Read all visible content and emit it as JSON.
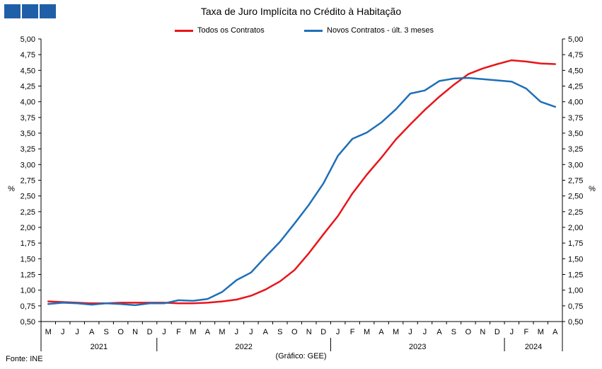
{
  "title": "Taxa de Juro Implícita  no Crédito à Habitação",
  "source": "Fonte: INE",
  "credit": "(Gráfico: GEE)",
  "chart_data": {
    "type": "line",
    "ylabel_left": "%",
    "ylabel_right": "%",
    "ylim": [
      0.5,
      5.0
    ],
    "ytick_step": 0.25,
    "ytick_labels": [
      "0,50",
      "0,75",
      "1,00",
      "1,25",
      "1,50",
      "1,75",
      "2,00",
      "2,25",
      "2,50",
      "2,75",
      "3,00",
      "3,25",
      "3,50",
      "3,75",
      "4,00",
      "4,25",
      "4,50",
      "4,75",
      "5,00"
    ],
    "months": [
      "M",
      "J",
      "J",
      "A",
      "S",
      "O",
      "N",
      "D",
      "J",
      "F",
      "M",
      "A",
      "M",
      "J",
      "J",
      "A",
      "S",
      "O",
      "N",
      "D",
      "J",
      "F",
      "M",
      "A",
      "M",
      "J",
      "J",
      "A",
      "S",
      "O",
      "N",
      "D",
      "J",
      "F",
      "M",
      "A"
    ],
    "years": [
      {
        "label": "2021",
        "start": 0,
        "end": 7
      },
      {
        "label": "2022",
        "start": 8,
        "end": 19
      },
      {
        "label": "2023",
        "start": 20,
        "end": 31
      },
      {
        "label": "2024",
        "start": 32,
        "end": 35
      }
    ],
    "grid": false,
    "legend_position": "top-center",
    "series": [
      {
        "name": "Todos os Contratos",
        "color": "#e8151b",
        "values": [
          0.82,
          0.81,
          0.8,
          0.79,
          0.79,
          0.8,
          0.8,
          0.8,
          0.8,
          0.79,
          0.79,
          0.8,
          0.82,
          0.85,
          0.91,
          1.01,
          1.14,
          1.32,
          1.59,
          1.89,
          2.18,
          2.54,
          2.84,
          3.11,
          3.4,
          3.64,
          3.87,
          4.08,
          4.27,
          4.44,
          4.53,
          4.6,
          4.66,
          4.64,
          4.61,
          4.6
        ]
      },
      {
        "name": "Novos Contratos - últ. 3 meses",
        "color": "#1f6fb8",
        "values": [
          0.78,
          0.8,
          0.79,
          0.77,
          0.79,
          0.78,
          0.76,
          0.79,
          0.79,
          0.84,
          0.83,
          0.86,
          0.97,
          1.16,
          1.28,
          1.53,
          1.77,
          2.06,
          2.36,
          2.7,
          3.14,
          3.41,
          3.51,
          3.67,
          3.88,
          4.13,
          4.18,
          4.33,
          4.37,
          4.38,
          4.36,
          4.34,
          4.32,
          4.21,
          4.0,
          3.92
        ]
      }
    ]
  }
}
